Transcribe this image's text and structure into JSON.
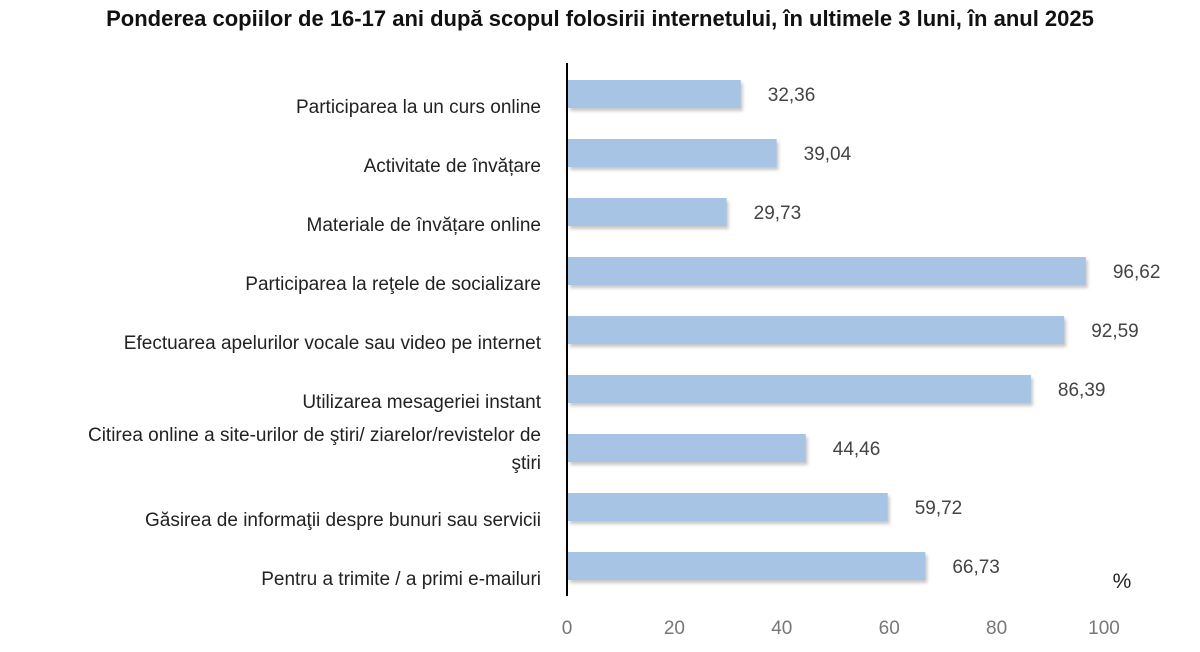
{
  "chart_data": {
    "type": "bar",
    "orientation": "horizontal",
    "title": "Ponderea copiilor de 16-17 ani după scopul folosirii internetului, în ultimele 3 luni, în anul 2025",
    "unit_label": "%",
    "categories": [
      "Participarea la un curs online",
      "Activitate de  învățare",
      "Materiale de învățare online",
      "Participarea la reţele de socializare",
      "Efectuarea apelurilor vocale sau video pe internet",
      "Utilizarea mesageriei instant",
      "Citirea online a site-urilor de ştiri/ ziarelor/revistelor de ştiri",
      "Găsirea de informaţii despre bunuri sau servicii",
      "Pentru a trimite / a primi e-mailuri"
    ],
    "values": [
      32.36,
      39.04,
      29.73,
      96.62,
      92.59,
      86.39,
      44.46,
      59.72,
      66.73
    ],
    "value_labels": [
      "32,36",
      "39,04",
      "29,73",
      "96,62",
      "92,59",
      "86,39",
      "44,46",
      "59,72",
      "66,73"
    ],
    "xlim": [
      0,
      100
    ],
    "x_ticks": [
      "0",
      "20",
      "40",
      "60",
      "80",
      "100"
    ],
    "grid": false,
    "bar_color": "#a7c4e5"
  }
}
